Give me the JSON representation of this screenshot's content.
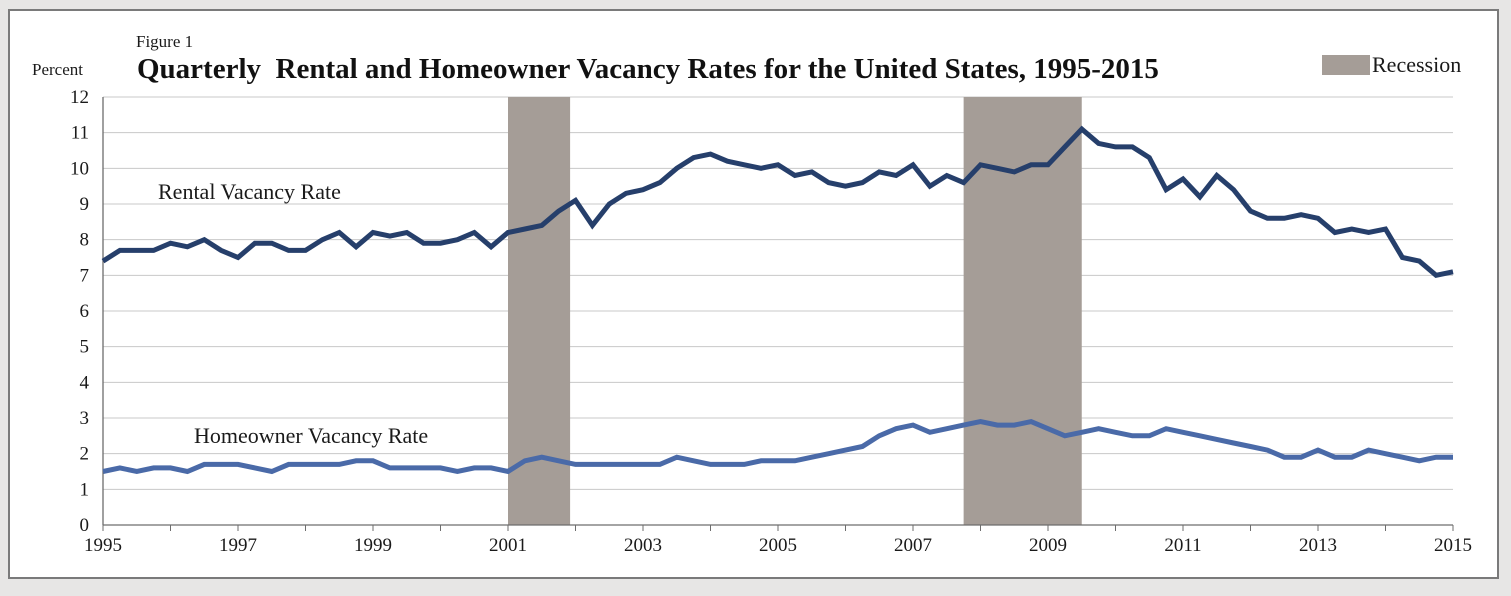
{
  "figure_label": "Figure 1",
  "colors": {
    "rental": "#263f6b",
    "homeowner": "#4a6aa8",
    "recession": "#a59d97",
    "grid": "#c8c8c8",
    "background": "#ffffff",
    "frame": "#7a7a7a"
  },
  "chart_data": {
    "type": "line",
    "title": "Quarterly  Rental and Homeowner Vacancy Rates for the United States, 1995-2015",
    "ylabel": "Percent",
    "xlabel": "",
    "ylim": [
      0,
      12
    ],
    "xlim": [
      1995,
      2015
    ],
    "y_ticks": [
      "0",
      "1",
      "2",
      "3",
      "4",
      "5",
      "6",
      "7",
      "8",
      "9",
      "10",
      "11",
      "12"
    ],
    "x_ticks": [
      "1995",
      "1997",
      "1999",
      "2001",
      "2003",
      "2005",
      "2007",
      "2009",
      "2011",
      "2013",
      "2015"
    ],
    "grid": "horizontal",
    "legend": {
      "placement": "top-right",
      "entries": [
        "Recession"
      ]
    },
    "recessions": [
      {
        "start": 2001.0,
        "end": 2001.92
      },
      {
        "start": 2007.75,
        "end": 2009.5
      }
    ],
    "series": [
      {
        "name": "Rental Vacancy Rate",
        "x_start": 1995.0,
        "x_step": 0.25,
        "values": [
          7.4,
          7.7,
          7.7,
          7.7,
          7.9,
          7.8,
          8.0,
          7.7,
          7.5,
          7.9,
          7.9,
          7.7,
          7.7,
          8.0,
          8.2,
          7.8,
          8.2,
          8.1,
          8.2,
          7.9,
          7.9,
          8.0,
          8.2,
          7.8,
          8.2,
          8.3,
          8.4,
          8.8,
          9.1,
          8.4,
          9.0,
          9.3,
          9.4,
          9.6,
          10.0,
          10.3,
          10.4,
          10.2,
          10.1,
          10.0,
          10.1,
          9.8,
          9.9,
          9.6,
          9.5,
          9.6,
          9.9,
          9.8,
          10.1,
          9.5,
          9.8,
          9.6,
          10.1,
          10.0,
          9.9,
          10.1,
          10.1,
          10.6,
          11.1,
          10.7,
          10.6,
          10.6,
          10.3,
          9.4,
          9.7,
          9.2,
          9.8,
          9.4,
          8.8,
          8.6,
          8.6,
          8.7,
          8.6,
          8.2,
          8.3,
          8.2,
          8.3,
          7.5,
          7.4,
          7.0,
          7.1
        ],
        "label_text": "Rental Vacancy Rate"
      },
      {
        "name": "Homeowner Vacancy Rate",
        "x_start": 1995.0,
        "x_step": 0.25,
        "values": [
          1.5,
          1.6,
          1.5,
          1.6,
          1.6,
          1.5,
          1.7,
          1.7,
          1.7,
          1.6,
          1.5,
          1.7,
          1.7,
          1.7,
          1.7,
          1.8,
          1.8,
          1.6,
          1.6,
          1.6,
          1.6,
          1.5,
          1.6,
          1.6,
          1.5,
          1.8,
          1.9,
          1.8,
          1.7,
          1.7,
          1.7,
          1.7,
          1.7,
          1.7,
          1.9,
          1.8,
          1.7,
          1.7,
          1.7,
          1.8,
          1.8,
          1.8,
          1.9,
          2.0,
          2.1,
          2.2,
          2.5,
          2.7,
          2.8,
          2.6,
          2.7,
          2.8,
          2.9,
          2.8,
          2.8,
          2.9,
          2.7,
          2.5,
          2.6,
          2.7,
          2.6,
          2.5,
          2.5,
          2.7,
          2.6,
          2.5,
          2.4,
          2.3,
          2.2,
          2.1,
          1.9,
          1.9,
          2.1,
          1.9,
          1.9,
          2.1,
          2.0,
          1.9,
          1.8,
          1.9,
          1.9
        ],
        "label_text": "Homeowner Vacancy Rate"
      }
    ]
  }
}
